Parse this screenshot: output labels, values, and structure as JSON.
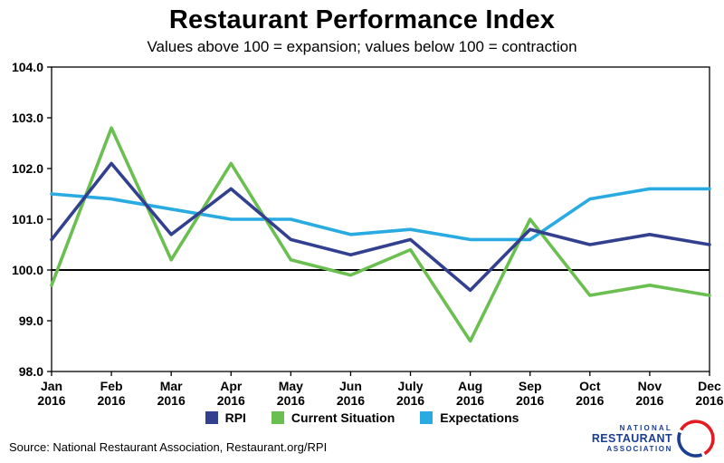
{
  "title": "Restaurant Performance Index",
  "subtitle": "Values above 100 = expansion; values below 100 = contraction",
  "source": "Source: National Restaurant Association, Restaurant.org/RPI",
  "logo": {
    "line1": "NATIONAL",
    "line2": "RESTAURANT",
    "line3": "ASSOCIATION",
    "text_color": "#1b3e93",
    "arc_red": "#e31b23",
    "arc_blue": "#1b3e93"
  },
  "chart_data": {
    "type": "line",
    "title": "Restaurant Performance Index",
    "subtitle": "Values above 100 = expansion; values below 100 = contraction",
    "x": [
      "Jan",
      "Feb",
      "Mar",
      "Apr",
      "May",
      "Jun",
      "July",
      "Aug",
      "Sep",
      "Oct",
      "Nov",
      "Dec"
    ],
    "x_year": "2016",
    "ylim": [
      98.0,
      104.0
    ],
    "ytick_step": 1.0,
    "baseline": 100.0,
    "grid": false,
    "legend_position": "bottom",
    "series": [
      {
        "name": "RPI",
        "color": "#333f8f",
        "values": [
          100.6,
          102.1,
          100.7,
          101.6,
          100.6,
          100.3,
          100.6,
          99.6,
          100.8,
          100.5,
          100.7,
          100.5
        ]
      },
      {
        "name": "Current Situation",
        "color": "#6abf50",
        "values": [
          99.7,
          102.8,
          100.2,
          102.1,
          100.2,
          99.9,
          100.4,
          98.6,
          101.0,
          99.5,
          99.7,
          99.5
        ]
      },
      {
        "name": "Expectations",
        "color": "#29abe2",
        "values": [
          101.5,
          101.4,
          101.2,
          101.0,
          101.0,
          100.7,
          100.8,
          100.6,
          100.6,
          101.4,
          101.6,
          101.6
        ]
      }
    ]
  }
}
